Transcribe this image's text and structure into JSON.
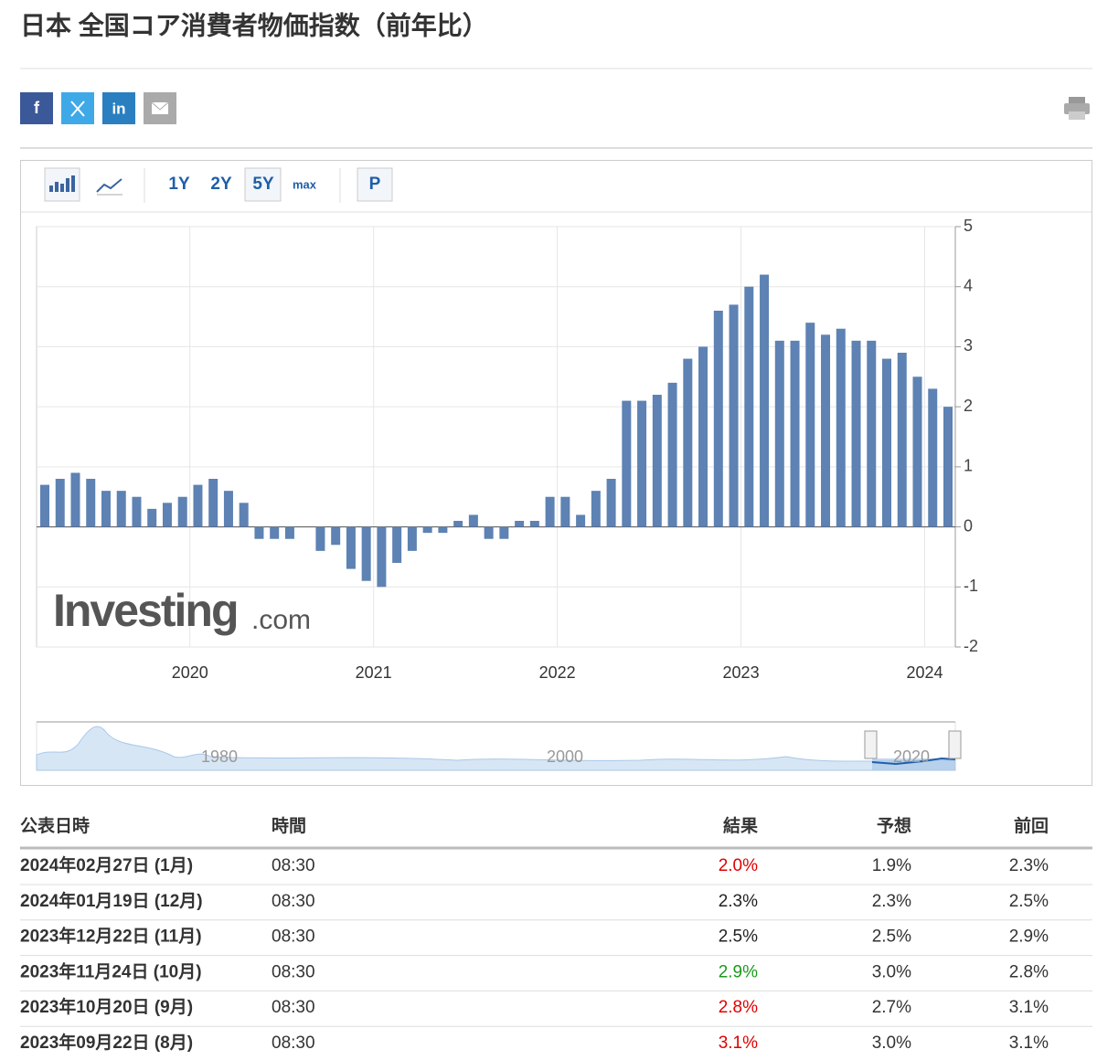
{
  "header": {
    "title": "日本 全国コア消費者物価指数（前年比）"
  },
  "toolbar": {
    "ranges": [
      "1Y",
      "2Y",
      "5Y",
      "max"
    ],
    "p": "P"
  },
  "watermark": {
    "brand": "Investing",
    "suffix": ".com"
  },
  "navigator": {
    "labels": [
      "1980",
      "2000",
      "2020"
    ]
  },
  "chart_data": {
    "type": "bar",
    "color": "#5d82b3",
    "categories": [
      null,
      null,
      null,
      null,
      null,
      null,
      null,
      null,
      null,
      "2020",
      null,
      null,
      null,
      null,
      null,
      null,
      null,
      null,
      null,
      null,
      null,
      "2021",
      null,
      null,
      null,
      null,
      null,
      null,
      null,
      null,
      null,
      null,
      null,
      "2022",
      null,
      null,
      null,
      null,
      null,
      null,
      null,
      null,
      null,
      null,
      null,
      "2023",
      null,
      null,
      null,
      null,
      null,
      null,
      null,
      null,
      null,
      null,
      null,
      "2024",
      null,
      null
    ],
    "values": [
      0.7,
      0.8,
      0.9,
      0.8,
      0.6,
      0.6,
      0.5,
      0.3,
      0.4,
      0.5,
      0.7,
      0.8,
      0.6,
      0.4,
      -0.2,
      -0.2,
      -0.2,
      0,
      -0.4,
      -0.3,
      -0.7,
      -0.9,
      -1.0,
      -0.6,
      -0.4,
      -0.1,
      -0.1,
      0.1,
      0.2,
      -0.2,
      -0.2,
      0.1,
      0.1,
      0.5,
      0.5,
      0.2,
      0.6,
      0.8,
      2.1,
      2.1,
      2.2,
      2.4,
      2.8,
      3.0,
      3.6,
      3.7,
      4.0,
      4.2,
      3.1,
      3.1,
      3.4,
      3.2,
      3.3,
      3.1,
      3.1,
      2.8,
      2.9,
      2.5,
      2.3,
      2.0
    ],
    "ylim": [
      -2,
      5
    ],
    "yticks": [
      -2,
      -1,
      0,
      1,
      2,
      3,
      4,
      5
    ],
    "grid": true
  },
  "table": {
    "headers": [
      "公表日時",
      "時間",
      "結果",
      "予想",
      "前回"
    ],
    "rows": [
      {
        "date": "2024年02月27日 (1月)",
        "time": "08:30",
        "actual": "2.0%",
        "forecast": "1.9%",
        "previous": "2.3%",
        "actual_color": "#e00000"
      },
      {
        "date": "2024年01月19日 (12月)",
        "time": "08:30",
        "actual": "2.3%",
        "forecast": "2.3%",
        "previous": "2.5%",
        "actual_color": "#222222"
      },
      {
        "date": "2023年12月22日 (11月)",
        "time": "08:30",
        "actual": "2.5%",
        "forecast": "2.5%",
        "previous": "2.9%",
        "actual_color": "#222222"
      },
      {
        "date": "2023年11月24日 (10月)",
        "time": "08:30",
        "actual": "2.9%",
        "forecast": "3.0%",
        "previous": "2.8%",
        "actual_color": "#1a9a1a"
      },
      {
        "date": "2023年10月20日 (9月)",
        "time": "08:30",
        "actual": "2.8%",
        "forecast": "2.7%",
        "previous": "3.1%",
        "actual_color": "#e00000"
      },
      {
        "date": "2023年09月22日 (8月)",
        "time": "08:30",
        "actual": "3.1%",
        "forecast": "3.0%",
        "previous": "3.1%",
        "actual_color": "#e00000"
      }
    ]
  }
}
